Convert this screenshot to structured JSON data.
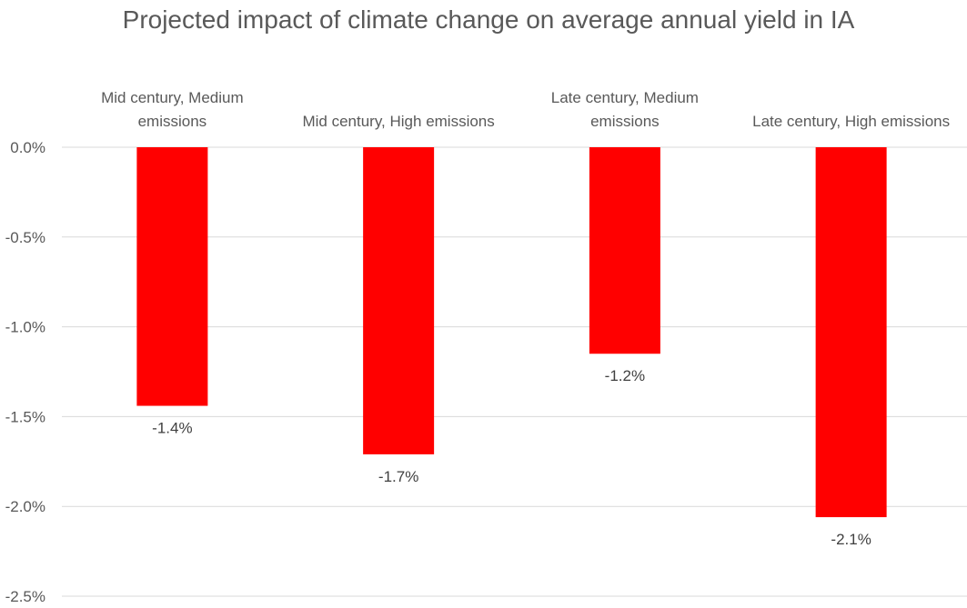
{
  "chart_data": {
    "type": "bar",
    "title": "Projected impact of climate change on average annual yield in IA",
    "categories": [
      "Mid century, Medium emissions",
      "Mid century, High emissions",
      "Late century, Medium emissions",
      "Late century, High emissions"
    ],
    "values": [
      -1.44,
      -1.71,
      -1.15,
      -2.06
    ],
    "data_labels": [
      "-1.4%",
      "-1.7%",
      "-1.2%",
      "-2.1%"
    ],
    "yticks": [
      0.0,
      -0.5,
      -1.0,
      -1.5,
      -2.0,
      -2.5
    ],
    "ytick_labels": [
      "0.0%",
      "-0.5%",
      "-1.0%",
      "-1.5%",
      "-2.0%",
      "-2.5%"
    ],
    "ylim": [
      -2.5,
      0.0
    ],
    "xlabel": "",
    "ylabel": "",
    "grid": true,
    "legend": "none",
    "bar_color": "#ff0000",
    "grid_color": "#d9d9d9"
  }
}
